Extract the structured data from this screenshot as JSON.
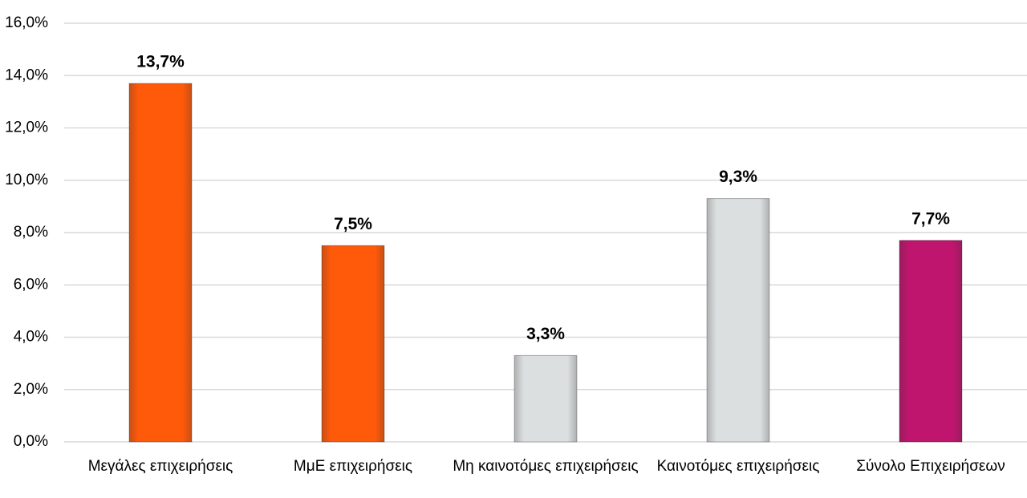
{
  "chart_data": {
    "type": "bar",
    "categories": [
      "Μεγάλες επιχειρήσεις",
      "ΜμΕ επιχειρήσεις",
      "Μη καινοτόμες επιχειρήσεις",
      "Καινοτόμες επιχειρήσεις",
      "Σύνολο Επιχειρήσεων"
    ],
    "values": [
      13.7,
      7.5,
      3.3,
      9.3,
      7.7
    ],
    "value_labels": [
      "13,7%",
      "7,5%",
      "3,3%",
      "9,3%",
      "7,7%"
    ],
    "colors": [
      "#ff5a0a",
      "#ff5a0a",
      "#dcdfe0",
      "#dcdfe0",
      "#c0156e"
    ],
    "ylim": [
      0,
      16
    ],
    "yticks": [
      {
        "value": 0,
        "label": "0,0%"
      },
      {
        "value": 2,
        "label": "2,0%"
      },
      {
        "value": 4,
        "label": "4,0%"
      },
      {
        "value": 6,
        "label": "6,0%"
      },
      {
        "value": 8,
        "label": "8,0%"
      },
      {
        "value": 10,
        "label": "10,0%"
      },
      {
        "value": 12,
        "label": "12,0%"
      },
      {
        "value": 14,
        "label": "14,0%"
      },
      {
        "value": 16,
        "label": "16,0%"
      }
    ],
    "grid": true
  }
}
